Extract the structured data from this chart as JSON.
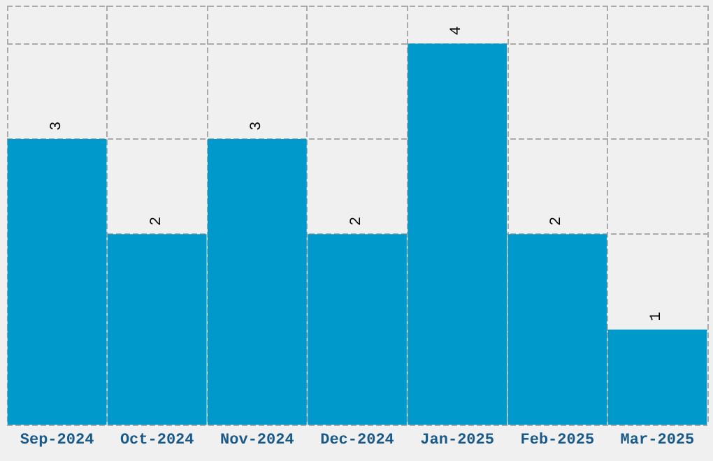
{
  "chart_data": {
    "type": "bar",
    "categories": [
      "Sep-2024",
      "Oct-2024",
      "Nov-2024",
      "Dec-2024",
      "Jan-2025",
      "Feb-2025",
      "Mar-2025"
    ],
    "values": [
      3,
      2,
      3,
      2,
      4,
      2,
      1
    ],
    "color": "#0099cc",
    "data_labels": true,
    "grid": true
  }
}
